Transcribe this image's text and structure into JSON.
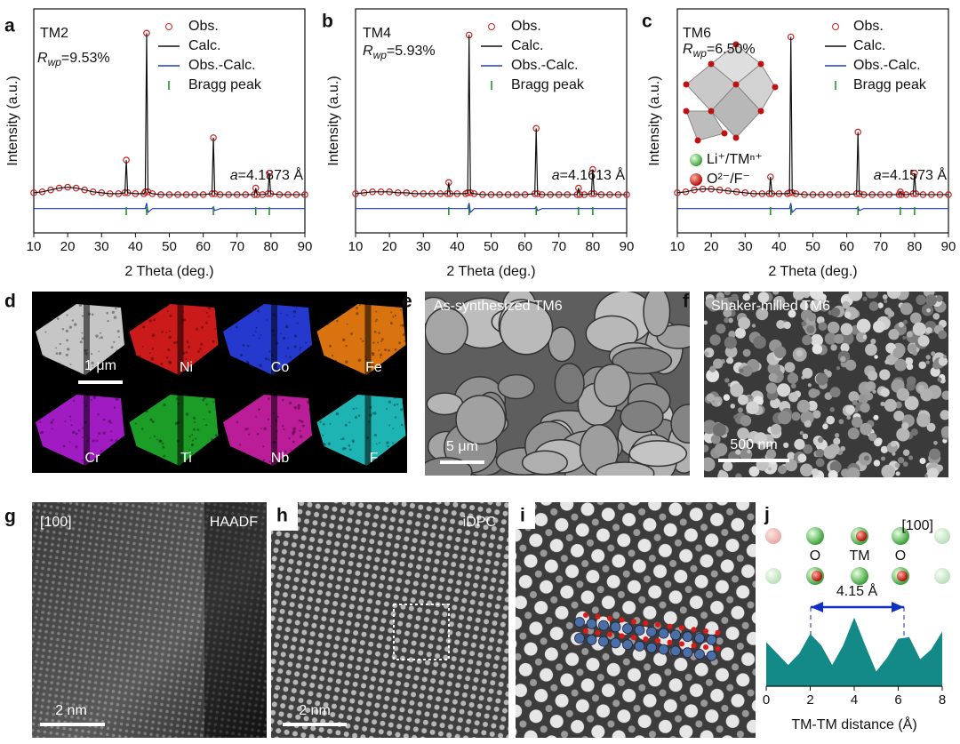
{
  "chart_data": [
    {
      "type": "line",
      "panel_label": "a",
      "title": "TM2",
      "rwp": {
        "symbol": "R",
        "subscript": "wp",
        "text": "=9.53%"
      },
      "lattice": {
        "symbol": "a",
        "text": "=4.1873 Å"
      },
      "x_label": "2 Theta (deg.)",
      "y_label": "Intensity (a.u.)",
      "xlim": [
        10,
        90
      ],
      "xticks": [
        10,
        20,
        30,
        40,
        50,
        60,
        70,
        80,
        90
      ],
      "ylim": [
        -20,
        100
      ],
      "x": [
        10,
        12.5,
        15,
        17.5,
        20,
        22.5,
        25,
        27.5,
        30,
        32.5,
        35,
        36.9,
        37.3,
        37.7,
        40,
        42.5,
        42.9,
        43.3,
        43.7,
        45,
        47.5,
        50,
        52.5,
        55,
        57.5,
        60,
        62.6,
        63,
        63.4,
        65,
        67.5,
        70,
        72.5,
        75.1,
        75.5,
        75.9,
        77.5,
        79.1,
        79.5,
        79.9,
        82.5,
        85,
        87.5,
        90
      ],
      "series": [
        {
          "name": "Obs.",
          "style": "markers",
          "color": "#cc2222",
          "values": [
            1.5,
            2,
            3,
            4,
            4.5,
            4,
            3,
            2,
            1.5,
            1,
            1,
            1.5,
            19,
            1.5,
            1,
            1,
            2,
            87,
            2,
            1,
            0.5,
            0.5,
            0.5,
            0.5,
            0.5,
            0.5,
            1,
            31,
            1,
            0.5,
            0.5,
            0.5,
            0.5,
            0.5,
            4,
            0.5,
            0.5,
            1,
            12,
            1,
            0.5,
            0.5,
            0.5,
            0.5
          ]
        },
        {
          "name": "Calc.",
          "style": "line",
          "color": "#111111",
          "values": [
            1.5,
            2,
            3,
            4,
            4.5,
            4,
            3,
            2,
            1.5,
            1,
            1,
            1.5,
            19,
            1.5,
            1,
            1,
            2,
            87,
            2,
            1,
            0.5,
            0.5,
            0.5,
            0.5,
            0.5,
            0.5,
            1,
            31,
            1,
            0.5,
            0.5,
            0.5,
            0.5,
            0.5,
            4,
            0.5,
            0.5,
            1,
            12,
            1,
            0.5,
            0.5,
            0.5,
            0.5
          ]
        },
        {
          "name": "Obs.-Calc.",
          "style": "line",
          "color": "#1f3fbf",
          "values": [
            -7,
            -7,
            -7,
            -7,
            -7,
            -7,
            -7,
            -7,
            -7,
            -7,
            -7,
            -7,
            -7,
            -7,
            -7,
            -7,
            -7,
            -4,
            -9,
            -7,
            -7,
            -7,
            -7,
            -7,
            -7,
            -7,
            -7,
            -6,
            -8,
            -7,
            -7,
            -7,
            -7,
            -7,
            -7,
            -7,
            -7,
            -7,
            -7,
            -7,
            -7,
            -7,
            -7,
            -7
          ]
        },
        {
          "name": "Bragg peak",
          "style": "bragg",
          "color": "#1a8a1a",
          "x": [
            37.3,
            43.3,
            63,
            75.5,
            79.5
          ]
        }
      ]
    },
    {
      "type": "line",
      "panel_label": "b",
      "title": "TM4",
      "rwp": {
        "symbol": "R",
        "subscript": "wp",
        "text": "=5.93%"
      },
      "lattice": {
        "symbol": "a",
        "text": "=4.1613 Å"
      },
      "x_label": "2 Theta (deg.)",
      "y_label": "Intensity (a.u.)",
      "xlim": [
        10,
        90
      ],
      "xticks": [
        10,
        20,
        30,
        40,
        50,
        60,
        70,
        80,
        90
      ],
      "ylim": [
        -20,
        100
      ],
      "x": [
        10,
        12.5,
        15,
        17.5,
        20,
        22.5,
        25,
        27.5,
        30,
        32.5,
        35,
        37.1,
        37.5,
        37.9,
        40,
        42.5,
        43.1,
        43.5,
        43.9,
        45,
        47.5,
        50,
        52.5,
        55,
        57.5,
        60,
        62.9,
        63.3,
        63.7,
        65,
        67.5,
        70,
        72.5,
        75.4,
        75.8,
        76.2,
        77.5,
        79.6,
        80,
        80.4,
        82.5,
        85,
        87.5,
        90
      ],
      "series": [
        {
          "name": "Obs.",
          "style": "markers",
          "color": "#cc2222",
          "values": [
            1,
            1.5,
            2,
            2,
            2,
            1.5,
            1.5,
            1,
            1,
            1,
            1,
            1,
            7,
            1,
            1,
            1,
            1.5,
            86,
            1.5,
            1,
            0.5,
            0.5,
            0.5,
            0.5,
            0.5,
            0.5,
            1,
            36,
            1,
            0.5,
            0.5,
            0.5,
            0.5,
            0.5,
            4,
            0.5,
            0.5,
            1,
            14,
            1,
            0.5,
            0.5,
            0.5,
            0.5
          ]
        },
        {
          "name": "Calc.",
          "style": "line",
          "color": "#111111",
          "values": [
            1,
            1.5,
            2,
            2,
            2,
            1.5,
            1.5,
            1,
            1,
            1,
            1,
            1,
            7,
            1,
            1,
            1,
            1.5,
            86,
            1.5,
            1,
            0.5,
            0.5,
            0.5,
            0.5,
            0.5,
            0.5,
            1,
            36,
            1,
            0.5,
            0.5,
            0.5,
            0.5,
            0.5,
            4,
            0.5,
            0.5,
            1,
            14,
            1,
            0.5,
            0.5,
            0.5,
            0.5
          ]
        },
        {
          "name": "Obs.-Calc.",
          "style": "line",
          "color": "#1f3fbf",
          "values": [
            -7,
            -7,
            -7,
            -7,
            -7,
            -7,
            -7,
            -7,
            -7,
            -7,
            -7,
            -7,
            -7,
            -7,
            -7,
            -7,
            -7,
            -4,
            -9,
            -7,
            -7,
            -7,
            -7,
            -7,
            -7,
            -7,
            -7,
            -6,
            -8,
            -7,
            -7,
            -7,
            -7,
            -7,
            -7,
            -7,
            -7,
            -7,
            -7,
            -7,
            -7,
            -7,
            -7,
            -7
          ]
        },
        {
          "name": "Bragg peak",
          "style": "bragg",
          "color": "#1a8a1a",
          "x": [
            37.5,
            43.5,
            63.3,
            75.8,
            80
          ]
        }
      ]
    },
    {
      "type": "line",
      "panel_label": "c",
      "title": "TM6",
      "rwp": {
        "symbol": "R",
        "subscript": "wp",
        "text": "=6.50%"
      },
      "lattice": {
        "symbol": "a",
        "text": "=4.1573 Å"
      },
      "inset_legend": [
        "Li⁺/TMⁿ⁺",
        "O²⁻/F⁻"
      ],
      "x_label": "2 Theta (deg.)",
      "y_label": "Intensity (a.u.)",
      "xlim": [
        10,
        90
      ],
      "xticks": [
        10,
        20,
        30,
        40,
        50,
        60,
        70,
        80,
        90
      ],
      "ylim": [
        -20,
        100
      ],
      "x": [
        10,
        12.5,
        15,
        17.5,
        20,
        22.5,
        25,
        27.5,
        30,
        32.5,
        35,
        37.1,
        37.5,
        37.9,
        40,
        42.5,
        43.1,
        43.5,
        43.9,
        45,
        47.5,
        50,
        52.5,
        55,
        57.5,
        60,
        62.9,
        63.3,
        63.7,
        65,
        67.5,
        70,
        72.5,
        75.4,
        75.8,
        76.2,
        77.5,
        79.6,
        80,
        80.4,
        82.5,
        85,
        87.5,
        90
      ],
      "series": [
        {
          "name": "Obs.",
          "style": "markers",
          "color": "#cc2222",
          "values": [
            1.5,
            2,
            3,
            3.5,
            3.5,
            3,
            2.5,
            2,
            1.5,
            1,
            1,
            1,
            10,
            1,
            1,
            1,
            1.5,
            85,
            1.5,
            1,
            0.5,
            0.5,
            0.5,
            0.5,
            0.5,
            0.5,
            1,
            34,
            1,
            0.5,
            0.5,
            0.5,
            0.5,
            0.5,
            2,
            0.5,
            0.5,
            1,
            12,
            1,
            0.5,
            0.5,
            0.5,
            0.5
          ]
        },
        {
          "name": "Calc.",
          "style": "line",
          "color": "#111111",
          "values": [
            1.5,
            2,
            3,
            3.5,
            3.5,
            3,
            2.5,
            2,
            1.5,
            1,
            1,
            1,
            10,
            1,
            1,
            1,
            1.5,
            85,
            1.5,
            1,
            0.5,
            0.5,
            0.5,
            0.5,
            0.5,
            0.5,
            1,
            34,
            1,
            0.5,
            0.5,
            0.5,
            0.5,
            0.5,
            2,
            0.5,
            0.5,
            1,
            12,
            1,
            0.5,
            0.5,
            0.5,
            0.5
          ]
        },
        {
          "name": "Obs.-Calc.",
          "style": "line",
          "color": "#1f3fbf",
          "values": [
            -7,
            -7,
            -7,
            -7,
            -7,
            -7,
            -7,
            -7,
            -7,
            -7,
            -7,
            -7,
            -7,
            -7,
            -7,
            -7,
            -7,
            -4,
            -9,
            -7,
            -7,
            -7,
            -7,
            -7,
            -7,
            -7,
            -7,
            -6,
            -8,
            -7,
            -7,
            -7,
            -7,
            -7,
            -7,
            -7,
            -7,
            -7,
            -7,
            -7,
            -7,
            -7,
            -7,
            -7
          ]
        },
        {
          "name": "Bragg peak",
          "style": "bragg",
          "color": "#1a8a1a",
          "x": [
            37.5,
            43.5,
            63.3,
            75.8,
            80
          ]
        }
      ]
    },
    {
      "type": "area",
      "panel_label": "j",
      "zone_axis": "[100]",
      "atom_labels": [
        "O",
        "TM",
        "O"
      ],
      "annotation": "4.15 Å",
      "x_label": "TM-TM distance (Å)",
      "xlim": [
        0,
        8
      ],
      "xticks": [
        0,
        2,
        4,
        6,
        8
      ],
      "ylim": [
        0,
        100
      ],
      "color": "#138a87",
      "x": [
        0,
        0.5,
        1,
        1.5,
        2,
        2.5,
        3,
        3.5,
        4,
        4.5,
        5,
        5.5,
        6,
        6.5,
        7,
        7.5,
        8
      ],
      "values": [
        54,
        40,
        26,
        40,
        64,
        50,
        26,
        50,
        84,
        50,
        18,
        35,
        58,
        60,
        33,
        45,
        67
      ]
    }
  ],
  "image_panels": {
    "d": {
      "label": "d",
      "scale_bar": "1 μm",
      "elements": [
        "Ni",
        "Co",
        "Fe",
        "Cr",
        "Ti",
        "Nb",
        "F"
      ],
      "colors": [
        "#e11d1d",
        "#2a3fe6",
        "#f07f12",
        "#b21ed8",
        "#1fae2c",
        "#cf1fa8",
        "#22c8c8"
      ]
    },
    "e": {
      "label": "e",
      "caption": "As-synthesized TM6",
      "scale_bar": "5 μm"
    },
    "f": {
      "label": "f",
      "caption": "Shaker-milled TM6",
      "scale_bar": "500 nm"
    },
    "g": {
      "label": "g",
      "zone_axis": "[100]",
      "mode": "HAADF",
      "scale_bar": "2 nm"
    },
    "h": {
      "label": "h",
      "mode": "iDPC",
      "scale_bar": "2 nm"
    },
    "i": {
      "label": "i"
    }
  }
}
